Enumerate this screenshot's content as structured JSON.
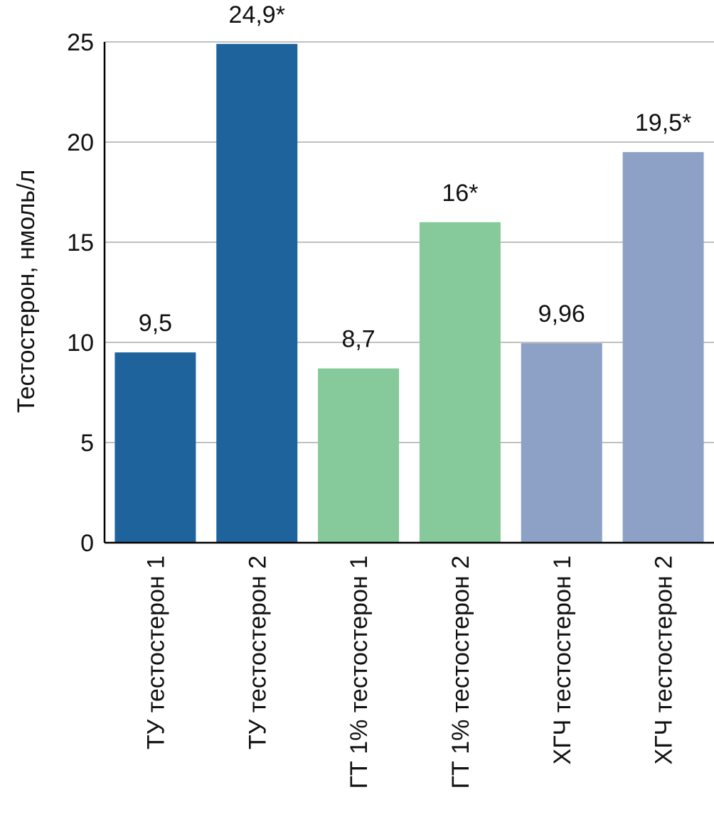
{
  "chart_data": {
    "type": "bar",
    "title": "",
    "ylabel": "Тестостерон, нмоль/л",
    "xlabel": "",
    "ylim": [
      0,
      25
    ],
    "yticks": [
      0,
      5,
      10,
      15,
      20,
      25
    ],
    "grid": true,
    "categories": [
      "ТУ тестостерон 1",
      "ТУ тестостерон 2",
      "ГТ 1% тестостерон 1",
      "ГТ 1% тестостерон 2",
      "ХГЧ тестостерон 1",
      "ХГЧ тестостерон 2"
    ],
    "values": [
      9.5,
      24.9,
      8.7,
      16,
      9.96,
      19.5
    ],
    "data_labels": [
      "9,5",
      "24,9*",
      "8,7",
      "16*",
      "9,96",
      "19,5*"
    ],
    "colors": [
      "#1f639d",
      "#1f639d",
      "#86c99b",
      "#86c99b",
      "#8da1c6",
      "#8da1c6"
    ],
    "gridline_color": "#9a9a9a",
    "axis_color": "#000000"
  }
}
